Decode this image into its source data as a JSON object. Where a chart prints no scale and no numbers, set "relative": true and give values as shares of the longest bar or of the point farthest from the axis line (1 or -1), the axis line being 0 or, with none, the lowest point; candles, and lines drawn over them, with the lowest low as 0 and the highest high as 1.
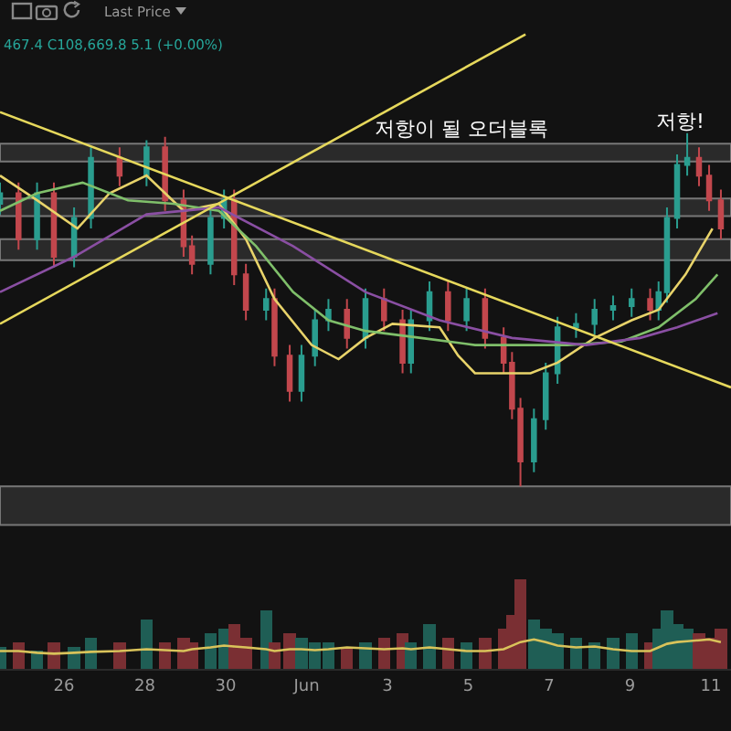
{
  "chart_data": [
    {
      "type": "candlestick",
      "relative": true,
      "tick_labels": false,
      "grid": false,
      "x": [
        "--05-24T10:00",
        "--05-24T21:00",
        "--05-25T08:00",
        "--05-25T18:00",
        "--05-26T06:00",
        "--05-26T16:00",
        "--05-27T09:00",
        "--05-28T01:00",
        "--05-28T12:00",
        "--05-28T23:00",
        "--05-29T04:00",
        "--05-29T15:00",
        "--05-29T23:00",
        "--05-30T05:00",
        "--05-30T12:00",
        "--05-31T00:00",
        "--05-31T05:00",
        "--05-31T14:00",
        "--05-31T21:00",
        "--06-01T05:00",
        "--06-01T13:00",
        "--06-02T00:00",
        "--06-02T11:00",
        "--06-02T22:00",
        "--06-03T09:00",
        "--06-03T14:00",
        "--06-04T01:00",
        "--06-04T12:00",
        "--06-04T23:00",
        "--06-05T10:00",
        "--06-05T21:00",
        "--06-06T02:00",
        "--06-06T07:00",
        "--06-06T15:00",
        "--06-06T22:00",
        "--06-07T05:00",
        "--06-07T16:00",
        "--06-08T03:00",
        "--06-08T14:00",
        "--06-09T01:00",
        "--06-09T12:00",
        "--06-09T17:00",
        "--06-09T22:00",
        "--06-10T04:00",
        "--06-10T10:00",
        "--06-10T17:00",
        "--06-10T23:00",
        "--06-11T06:00"
      ],
      "ohlc": [
        [
          0.8,
          0.86,
          0.77,
          0.83
        ],
        [
          0.83,
          0.86,
          0.67,
          0.7
        ],
        [
          0.7,
          0.86,
          0.67,
          0.83
        ],
        [
          0.83,
          0.86,
          0.62,
          0.65
        ],
        [
          0.65,
          0.79,
          0.62,
          0.76
        ],
        [
          0.76,
          0.96,
          0.73,
          0.93
        ],
        [
          0.93,
          0.96,
          0.85,
          0.88
        ],
        [
          0.88,
          0.98,
          0.85,
          0.96
        ],
        [
          0.96,
          0.99,
          0.78,
          0.81
        ],
        [
          0.81,
          0.84,
          0.65,
          0.68
        ],
        [
          0.68,
          0.71,
          0.6,
          0.63
        ],
        [
          0.63,
          0.79,
          0.6,
          0.76
        ],
        [
          0.76,
          0.84,
          0.73,
          0.81
        ],
        [
          0.81,
          0.84,
          0.57,
          0.6
        ],
        [
          0.6,
          0.63,
          0.47,
          0.5
        ],
        [
          0.5,
          0.56,
          0.47,
          0.53
        ],
        [
          0.53,
          0.56,
          0.34,
          0.37
        ],
        [
          0.37,
          0.4,
          0.24,
          0.27
        ],
        [
          0.27,
          0.4,
          0.24,
          0.37
        ],
        [
          0.37,
          0.5,
          0.34,
          0.47
        ],
        [
          0.47,
          0.53,
          0.44,
          0.5
        ],
        [
          0.5,
          0.53,
          0.39,
          0.42
        ],
        [
          0.42,
          0.56,
          0.39,
          0.53
        ],
        [
          0.53,
          0.56,
          0.44,
          0.47
        ],
        [
          0.47,
          0.5,
          0.32,
          0.35
        ],
        [
          0.35,
          0.5,
          0.32,
          0.47
        ],
        [
          0.47,
          0.58,
          0.44,
          0.55
        ],
        [
          0.55,
          0.58,
          0.44,
          0.47
        ],
        [
          0.47,
          0.56,
          0.44,
          0.53
        ],
        [
          0.53,
          0.56,
          0.39,
          0.42
        ],
        [
          0.42,
          0.45,
          0.32,
          0.35
        ],
        [
          0.35,
          0.38,
          0.19,
          0.22
        ],
        [
          0.22,
          0.25,
          0.0,
          0.07
        ],
        [
          0.07,
          0.22,
          0.04,
          0.19
        ],
        [
          0.19,
          0.35,
          0.16,
          0.32
        ],
        [
          0.32,
          0.48,
          0.29,
          0.45
        ],
        [
          0.45,
          0.49,
          0.42,
          0.46
        ],
        [
          0.46,
          0.53,
          0.43,
          0.5
        ],
        [
          0.5,
          0.54,
          0.47,
          0.51
        ],
        [
          0.51,
          0.56,
          0.48,
          0.53
        ],
        [
          0.53,
          0.56,
          0.47,
          0.5
        ],
        [
          0.5,
          0.58,
          0.47,
          0.55
        ],
        [
          0.55,
          0.79,
          0.52,
          0.76
        ],
        [
          0.76,
          0.94,
          0.73,
          0.91
        ],
        [
          0.91,
          1.0,
          0.88,
          0.93
        ],
        [
          0.93,
          0.96,
          0.85,
          0.88
        ],
        [
          0.88,
          0.91,
          0.78,
          0.81
        ],
        [
          0.81,
          0.84,
          0.7,
          0.73
        ]
      ],
      "colors": [
        "#2a9d8f",
        "#c2474d",
        "#2a9d8f",
        "#c2474d",
        "#2a9d8f",
        "#2a9d8f",
        "#c2474d",
        "#2a9d8f",
        "#c2474d",
        "#c2474d",
        "#c2474d",
        "#2a9d8f",
        "#2a9d8f",
        "#c2474d",
        "#c2474d",
        "#2a9d8f",
        "#c2474d",
        "#c2474d",
        "#2a9d8f",
        "#2a9d8f",
        "#2a9d8f",
        "#c2474d",
        "#2a9d8f",
        "#c2474d",
        "#c2474d",
        "#2a9d8f",
        "#2a9d8f",
        "#c2474d",
        "#2a9d8f",
        "#c2474d",
        "#c2474d",
        "#c2474d",
        "#c2474d",
        "#2a9d8f",
        "#2a9d8f",
        "#2a9d8f",
        "#2a9d8f",
        "#2a9d8f",
        "#2a9d8f",
        "#2a9d8f",
        "#c2474d",
        "#2a9d8f",
        "#2a9d8f",
        "#2a9d8f",
        "#2a9d8f",
        "#c2474d",
        "#c2474d",
        "#c2474d"
      ],
      "xlim": [
        "--05-24T10:00",
        "--06-11T12:00"
      ],
      "series": [
        {
          "type": "line",
          "color": "#e8d36a",
          "x": [
            "--05-24T10:00",
            "--05-25T08:00",
            "--05-26T08:00",
            "--05-27T03:00",
            "--05-28T01:00",
            "--05-28T23:00",
            "--05-29T20:00",
            "--05-30T12:00",
            "--05-31T05:00",
            "--06-01T03:00",
            "--06-01T19:00",
            "--06-02T11:00",
            "--06-03T03:00",
            "--06-04T07:00",
            "--06-04T18:00",
            "--06-05T04:00",
            "--06-06T13:00",
            "--06-07T05:00",
            "--06-08T03:00",
            "--06-09T01:00",
            "--06-09T17:00",
            "--06-10T09:00",
            "--06-11T01:00"
          ],
          "values": [
            0.88,
            0.81,
            0.73,
            0.83,
            0.88,
            0.78,
            0.8,
            0.7,
            0.53,
            0.4,
            0.36,
            0.42,
            0.46,
            0.45,
            0.37,
            0.32,
            0.32,
            0.35,
            0.42,
            0.47,
            0.5,
            0.6,
            0.73
          ]
        },
        {
          "type": "line",
          "color": "#7fbf6a",
          "x": [
            "--05-24T10:00",
            "--05-25T08:00",
            "--05-26T11:00",
            "--05-27T14:00",
            "--05-28T17:00",
            "--05-29T20:00",
            "--05-30T18:00",
            "--05-31T16:00",
            "--06-01T13:00",
            "--06-02T11:00",
            "--06-03T20:00",
            "--06-05T04:00",
            "--06-07T11:00",
            "--06-08T19:00",
            "--06-09T17:00",
            "--06-10T15:00",
            "--06-11T04:00"
          ],
          "values": [
            0.78,
            0.83,
            0.86,
            0.81,
            0.8,
            0.78,
            0.68,
            0.55,
            0.47,
            0.44,
            0.42,
            0.4,
            0.4,
            0.41,
            0.45,
            0.53,
            0.6
          ]
        },
        {
          "type": "line",
          "color": "#8a4fa3",
          "x": [
            "--05-24T10:00",
            "--05-26T06:00",
            "--05-28T01:00",
            "--05-29T20:00",
            "--05-31T16:00",
            "--06-02T11:00",
            "--06-04T07:00",
            "--06-06T02:00",
            "--06-07T22:00",
            "--06-09T06:00",
            "--06-10T04:00",
            "--06-11T04:00"
          ],
          "values": [
            0.55,
            0.65,
            0.77,
            0.79,
            0.68,
            0.55,
            0.47,
            0.42,
            0.4,
            0.42,
            0.45,
            0.49
          ]
        },
        {
          "type": "line",
          "color": "#e6d85c",
          "x": [
            "--05-24T10:00",
            "--06-11T12:00"
          ],
          "values": [
            1.06,
            0.28
          ]
        },
        {
          "type": "line",
          "color": "#e6d85c",
          "x": [
            "--05-24T10:00",
            "--06-06T10:00"
          ],
          "values": [
            0.46,
            1.28
          ]
        }
      ],
      "bands": [
        {
          "axis": "y",
          "from": 0.92,
          "to": 0.97,
          "color": "#3a3a3a"
        },
        {
          "axis": "y",
          "from": 0.765,
          "to": 0.815,
          "color": "#3a3a3a"
        },
        {
          "axis": "y",
          "from": 0.64,
          "to": 0.7,
          "color": "#3a3a3a"
        },
        {
          "axis": "y",
          "from": -0.11,
          "to": 0,
          "color": "#3a3a3a"
        }
      ],
      "annotations": [
        "467.4 C108,669.8 5.1 (+0.00%)",
        "Last Price",
        "저항이 될 오더블록",
        "저항!"
      ]
    },
    {
      "type": "bar",
      "relative": true,
      "tick_labels": "x",
      "grid": false,
      "x": [
        "--05-24T10:00",
        "--05-24T21:00",
        "--05-25T08:00",
        "--05-25T18:00",
        "--05-26T06:00",
        "--05-26T16:00",
        "--05-27T09:00",
        "--05-28T01:00",
        "--05-28T12:00",
        "--05-28T23:00",
        "--05-29T04:00",
        "--05-29T15:00",
        "--05-29T23:00",
        "--05-30T05:00",
        "--05-30T12:00",
        "--05-31T00:00",
        "--05-31T05:00",
        "--05-31T14:00",
        "--05-31T21:00",
        "--06-01T05:00",
        "--06-01T13:00",
        "--06-02T00:00",
        "--06-02T11:00",
        "--06-02T22:00",
        "--06-03T09:00",
        "--06-03T14:00",
        "--06-04T01:00",
        "--06-04T12:00",
        "--06-04T23:00",
        "--06-05T10:00",
        "--06-05T21:00",
        "--06-06T02:00",
        "--06-06T07:00",
        "--06-06T15:00",
        "--06-06T22:00",
        "--06-07T05:00",
        "--06-07T16:00",
        "--06-08T03:00",
        "--06-08T14:00",
        "--06-09T01:00",
        "--06-09T12:00",
        "--06-09T17:00",
        "--06-09T22:00",
        "--06-10T04:00",
        "--06-10T10:00",
        "--06-10T17:00",
        "--06-10T23:00",
        "--06-11T06:00"
      ],
      "values": [
        0.25,
        0.3,
        0.2,
        0.3,
        0.25,
        0.35,
        0.3,
        0.55,
        0.3,
        0.35,
        0.3,
        0.4,
        0.45,
        0.5,
        0.35,
        0.65,
        0.3,
        0.4,
        0.35,
        0.3,
        0.3,
        0.25,
        0.3,
        0.35,
        0.4,
        0.3,
        0.5,
        0.35,
        0.3,
        0.35,
        0.45,
        0.6,
        1.0,
        0.55,
        0.45,
        0.4,
        0.35,
        0.3,
        0.35,
        0.4,
        0.3,
        0.45,
        0.65,
        0.5,
        0.45,
        0.4,
        0.35,
        0.45
      ],
      "colors": [
        "#1f5e55",
        "#7a2f33",
        "#1f5e55",
        "#7a2f33",
        "#1f5e55",
        "#1f5e55",
        "#7a2f33",
        "#1f5e55",
        "#7a2f33",
        "#7a2f33",
        "#7a2f33",
        "#1f5e55",
        "#1f5e55",
        "#7a2f33",
        "#7a2f33",
        "#1f5e55",
        "#7a2f33",
        "#7a2f33",
        "#1f5e55",
        "#1f5e55",
        "#1f5e55",
        "#7a2f33",
        "#1f5e55",
        "#7a2f33",
        "#7a2f33",
        "#1f5e55",
        "#1f5e55",
        "#7a2f33",
        "#1f5e55",
        "#7a2f33",
        "#7a2f33",
        "#7a2f33",
        "#7a2f33",
        "#1f5e55",
        "#1f5e55",
        "#1f5e55",
        "#1f5e55",
        "#1f5e55",
        "#1f5e55",
        "#1f5e55",
        "#7a2f33",
        "#1f5e55",
        "#1f5e55",
        "#1f5e55",
        "#1f5e55",
        "#7a2f33",
        "#7a2f33",
        "#7a2f33"
      ],
      "xlim": [
        "--05-24T10:00",
        "--06-11T12:00"
      ],
      "xticks": [
        {
          "value": "--05-26",
          "label": "26"
        },
        {
          "value": "--05-28",
          "label": "28"
        },
        {
          "value": "--05-30",
          "label": "30"
        },
        {
          "value": "--06-01",
          "label": "Jun"
        },
        {
          "value": "--06-03",
          "label": "3"
        },
        {
          "value": "--06-05",
          "label": "5"
        },
        {
          "value": "--06-07",
          "label": "7"
        },
        {
          "value": "--06-09",
          "label": "9"
        },
        {
          "value": "--06-11",
          "label": "11"
        }
      ],
      "series": [
        {
          "type": "line",
          "color": "#d9c35a",
          "values": [
            0.2,
            0.2,
            0.18,
            0.17,
            0.18,
            0.19,
            0.2,
            0.22,
            0.21,
            0.2,
            0.22,
            0.24,
            0.26,
            0.25,
            0.24,
            0.22,
            0.2,
            0.22,
            0.22,
            0.21,
            0.22,
            0.24,
            0.23,
            0.22,
            0.23,
            0.22,
            0.24,
            0.22,
            0.2,
            0.2,
            0.22,
            0.26,
            0.3,
            0.33,
            0.3,
            0.26,
            0.24,
            0.25,
            0.22,
            0.2,
            0.2,
            0.24,
            0.28,
            0.3,
            0.31,
            0.32,
            0.33,
            0.3
          ]
        }
      ]
    }
  ]
}
